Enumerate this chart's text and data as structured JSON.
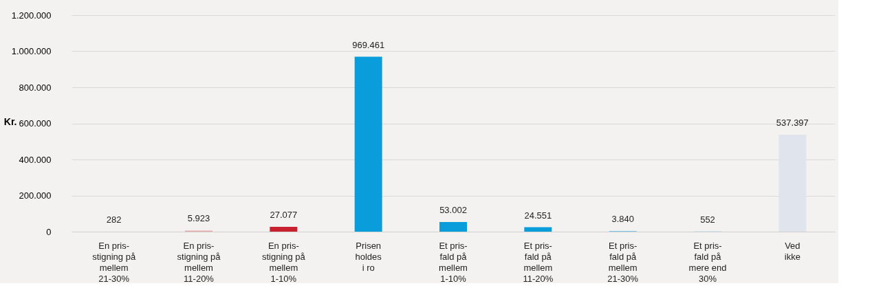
{
  "chart_data": {
    "type": "bar",
    "ylabel": "Kr.",
    "categories": [
      "En pris-\nstigning på\nmellem\n21-30%",
      "En pris-\nstigning på\nmellem\n11-20%",
      "En pris-\nstigning på\nmellem\n1-10%",
      "Prisen\nholdes\ni ro",
      "Et pris-\nfald på\nmellem\n1-10%",
      "Et pris-\nfald på\nmellem\n11-20%",
      "Et pris-\nfald på\nmellem\n21-30%",
      "Et pris-\nfald på\nmere end\n30%",
      "Ved\nikke"
    ],
    "values": [
      282,
      5923,
      27077,
      969461,
      53002,
      24551,
      3840,
      552,
      537397
    ],
    "value_labels": [
      "282",
      "5.923",
      "27.077",
      "969.461",
      "53.002",
      "24.551",
      "3.840",
      "552",
      "537.397"
    ],
    "colors": [
      "#e8b4b8",
      "#e8a8ac",
      "#c8202e",
      "#0a9ddb",
      "#0a9ddb",
      "#0a9ddb",
      "#7cc4e8",
      "#7cc4e8",
      "#e0e4ec"
    ],
    "ylim": [
      0,
      1200000
    ],
    "yticks": [
      {
        "value": 0,
        "label": "0"
      },
      {
        "value": 200000,
        "label": "200.000"
      },
      {
        "value": 400000,
        "label": "400.000"
      },
      {
        "value": 600000,
        "label": "600.000"
      },
      {
        "value": 800000,
        "label": "800.000"
      },
      {
        "value": 1000000,
        "label": "1.000.000"
      },
      {
        "value": 1200000,
        "label": "1.200.000"
      }
    ],
    "grid": "y"
  }
}
